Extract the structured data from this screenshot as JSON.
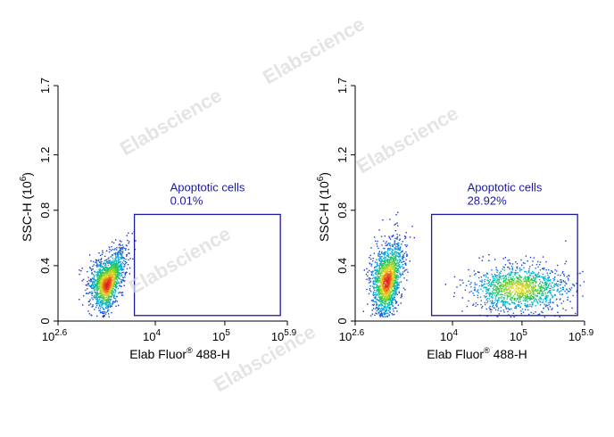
{
  "watermark_text": "Elabscience",
  "colors": {
    "axis": "#000000",
    "gate": "#1a1aa6",
    "density_low": "#1f2bd6",
    "density_high": "#e41a1c"
  },
  "chart_data": [
    {
      "type": "scatter",
      "subtype": "flow-cytometry-density-dot-plot",
      "xlabel": {
        "main": "Elab Fluor",
        "sup": "®",
        "rest": " 488-H"
      },
      "ylabel": {
        "main": "SSC-H (10",
        "sup": "6",
        "rest": ")"
      },
      "xscale": "log",
      "xlim": [
        398,
        794328
      ],
      "ylim": [
        0,
        1.7
      ],
      "xticks": [
        {
          "value": 398,
          "base": "10",
          "exp": "2.6"
        },
        {
          "value": 10000,
          "base": "10",
          "exp": "4"
        },
        {
          "value": 100000,
          "base": "10",
          "exp": "5"
        },
        {
          "value": 794328,
          "base": "10",
          "exp": "5.9"
        }
      ],
      "yticks": [
        "0",
        "0.4",
        "0.8",
        "1.2",
        "1.7"
      ],
      "gate": {
        "label": "Apoptotic cells",
        "percent": "0.01%",
        "x_range": [
          5000,
          630000
        ],
        "y_range": [
          0.04,
          0.77
        ]
      },
      "populations": [
        {
          "name": "",
          "x_center_log10": 3.3,
          "x_spread_log10": 0.12,
          "y_center": 0.26,
          "y_spread": 0.09,
          "density": "high"
        }
      ]
    },
    {
      "type": "scatter",
      "subtype": "flow-cytometry-density-dot-plot",
      "xlabel": {
        "main": "Elab Fluor",
        "sup": "®",
        "rest": " 488-H"
      },
      "ylabel": {
        "main": "SSC-H (10",
        "sup": "6",
        "rest": ")"
      },
      "xscale": "log",
      "xlim": [
        398,
        794328
      ],
      "ylim": [
        0,
        1.7
      ],
      "xticks": [
        {
          "value": 398,
          "base": "10",
          "exp": "2.6"
        },
        {
          "value": 10000,
          "base": "10",
          "exp": "4"
        },
        {
          "value": 100000,
          "base": "10",
          "exp": "5"
        },
        {
          "value": 794328,
          "base": "10",
          "exp": "5.9"
        }
      ],
      "yticks": [
        "0",
        "0.4",
        "0.8",
        "1.2",
        "1.7"
      ],
      "gate": {
        "label": "Apoptotic cells",
        "percent": "28.92%",
        "x_range": [
          5000,
          630000
        ],
        "y_range": [
          0.04,
          0.77
        ]
      },
      "populations": [
        {
          "name": "",
          "x_center_log10": 3.05,
          "x_spread_log10": 0.11,
          "y_center": 0.28,
          "y_spread": 0.12,
          "density": "high"
        },
        {
          "name": "",
          "x_center_log10": 4.95,
          "x_spread_log10": 0.35,
          "y_center": 0.24,
          "y_spread": 0.08,
          "density": "medium"
        }
      ]
    }
  ]
}
